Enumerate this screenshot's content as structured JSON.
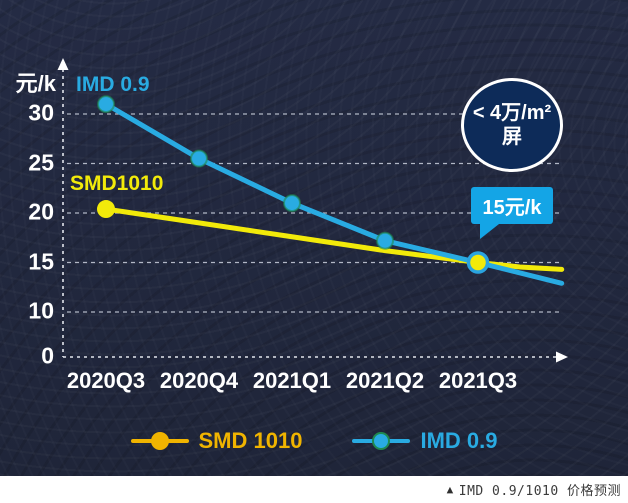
{
  "chart_data": {
    "type": "line",
    "title": "IMD 0.9/1010 价格预测",
    "ylabel": "元/k",
    "xlabel": "",
    "categories": [
      "2020Q3",
      "2020Q4",
      "2021Q1",
      "2021Q2",
      "2021Q3"
    ],
    "y_ticks": [
      30,
      25,
      20,
      15,
      10,
      0
    ],
    "ylim": [
      0,
      33
    ],
    "grid": "dashed horizontal gridlines at 10,15,20,25,30",
    "legend_position": "bottom-center",
    "series": [
      {
        "id": "smd1010",
        "name": "SMD 1010",
        "color": "#f2ea0a",
        "legend_color": "#f0b400",
        "values": [
          20.4,
          19.0,
          17.6,
          16.2,
          15.0
        ],
        "extension": [
          {
            "x_frac": 4.45,
            "value": 14.55
          },
          {
            "x_frac": 4.9,
            "value": 14.3
          }
        ],
        "markers": [
          {
            "index": 0,
            "r": 9
          },
          {
            "index": 4,
            "r": 9.5,
            "ring": "#2aa4e0",
            "ring_width": 3.5
          }
        ]
      },
      {
        "id": "imd09",
        "name": "IMD 0.9",
        "color": "#29abe2",
        "legend_color": "#29abe2",
        "legend_dot_ring": "#1f8a50",
        "values": [
          31.0,
          25.5,
          21.0,
          17.2,
          15.0
        ],
        "extension": [
          {
            "x_frac": 4.9,
            "value": 12.9
          }
        ],
        "markers": [
          {
            "index": 0,
            "r": 8,
            "ring": "#1f8a50",
            "ring_width": 2
          },
          {
            "index": 1,
            "r": 8,
            "ring": "#1f8a50",
            "ring_width": 2
          },
          {
            "index": 2,
            "r": 8,
            "ring": "#1f8a50",
            "ring_width": 2
          },
          {
            "index": 3,
            "r": 8,
            "ring": "#1f8a50",
            "ring_width": 2
          },
          {
            "index": 4,
            "r": 8,
            "ring": "#1f8a50",
            "ring_width": 2
          }
        ]
      }
    ],
    "series_labels": [
      {
        "text": "SMD1010",
        "color": "#f2ea0a"
      },
      {
        "text": "IMD 0.9",
        "color": "#29abe2"
      }
    ],
    "annotations": {
      "badge": {
        "line1": "< 4万/m²",
        "line2": "屏",
        "fill": "#0d2b59",
        "border": "#ffffff"
      },
      "bubble": {
        "text": "15元/k",
        "fill": "#14a5e6",
        "points_at": "2021Q3 crossing point at 15"
      }
    }
  },
  "footer": {
    "marker": "▲",
    "caption": "IMD 0.9/1010 价格预测"
  },
  "colors": {
    "panel_bg": "#232a42",
    "grid": "#ccd1de",
    "tick_text": "#ffffff",
    "footer_bg": "#ffffff",
    "footer_text": "#3b3b3b"
  }
}
